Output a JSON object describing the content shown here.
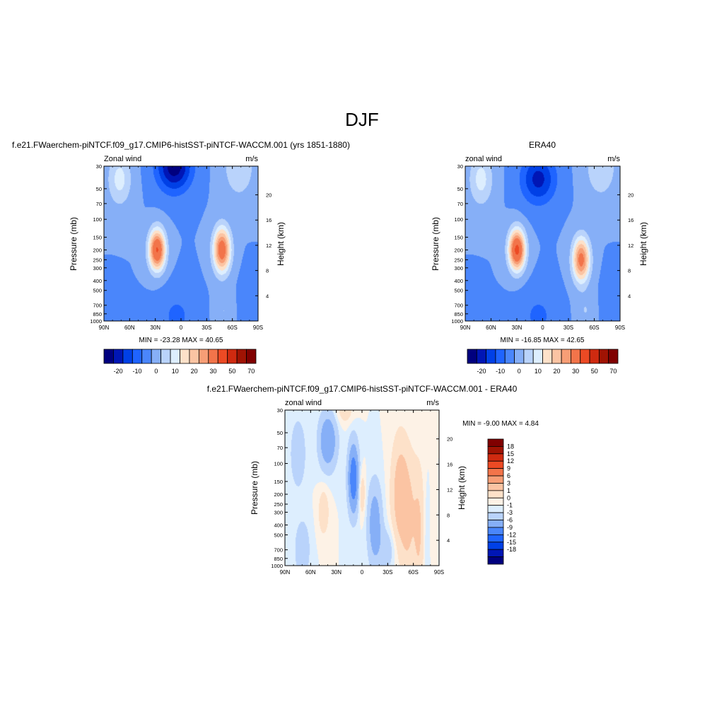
{
  "figure": {
    "title": "DJF"
  },
  "chart_data": [
    {
      "type": "heatmap",
      "title": "f.e21.FWaerchem-piNTCF.f09_g17.CMIP6-histSST-piNTCF-WACCM.001 (yrs 1851-1880)",
      "left_label": "Zonal wind",
      "units_label": "m/s",
      "ylabel": "Pressure (mb)",
      "y2label": "Height (km)",
      "x_ticks": [
        "90N",
        "60N",
        "30N",
        "0",
        "30S",
        "60S",
        "90S"
      ],
      "y_ticks": [
        "30",
        "50",
        "70",
        "100",
        "150",
        "200",
        "250",
        "300",
        "400",
        "500",
        "700",
        "850",
        "1000"
      ],
      "y2_ticks": [
        "4",
        "8",
        "12",
        "16",
        "20"
      ],
      "min_max": "MIN = -23.28  MAX =  40.65",
      "colorbar_levels": [
        -25,
        -20,
        -15,
        -10,
        -5,
        0,
        5,
        10,
        15,
        20,
        25,
        30,
        40,
        50,
        60,
        70
      ],
      "colorbar_labels": [
        "-20",
        "-10",
        "0",
        "10",
        "20",
        "30",
        "50",
        "70"
      ],
      "jets": [
        {
          "lat": 28,
          "p": 200,
          "max": 40.65
        },
        {
          "lat": -48,
          "p": 200,
          "max": 36
        },
        {
          "lat": 8,
          "p": 30,
          "min": -23.28
        }
      ]
    },
    {
      "type": "heatmap",
      "title": "ERA40",
      "left_label": "zonal wind",
      "units_label": "m/s",
      "ylabel": "Pressure (mb)",
      "y2label": "Height (km)",
      "x_ticks": [
        "90N",
        "60N",
        "30N",
        "0",
        "30S",
        "60S",
        "90S"
      ],
      "y_ticks": [
        "30",
        "50",
        "70",
        "100",
        "150",
        "200",
        "250",
        "300",
        "400",
        "500",
        "700",
        "850",
        "1000"
      ],
      "y2_ticks": [
        "4",
        "8",
        "12",
        "16",
        "20"
      ],
      "min_max": "MIN = -16.85  MAX =  42.65",
      "colorbar_levels": [
        -25,
        -20,
        -15,
        -10,
        -5,
        0,
        5,
        10,
        15,
        20,
        25,
        30,
        40,
        50,
        60,
        70
      ],
      "colorbar_labels": [
        "-20",
        "-10",
        "0",
        "10",
        "20",
        "30",
        "50",
        "70"
      ],
      "jets": [
        {
          "lat": 30,
          "p": 200,
          "max": 42.65
        },
        {
          "lat": -45,
          "p": 250,
          "max": 33
        },
        {
          "lat": 5,
          "p": 40,
          "min": -16.85
        }
      ]
    },
    {
      "type": "heatmap",
      "title": "f.e21.FWaerchem-piNTCF.f09_g17.CMIP6-histSST-piNTCF-WACCM.001 - ERA40",
      "left_label": "zonal wind",
      "units_label": "m/s",
      "ylabel": "Pressure (mb)",
      "y2label": "Height (km)",
      "x_ticks": [
        "90N",
        "60N",
        "30N",
        "0",
        "30S",
        "60S",
        "90S"
      ],
      "y_ticks": [
        "30",
        "50",
        "70",
        "100",
        "150",
        "200",
        "250",
        "300",
        "400",
        "500",
        "700",
        "850",
        "1000"
      ],
      "y2_ticks": [
        "4",
        "8",
        "12",
        "16",
        "20"
      ],
      "min_max": "MIN =  -9.00  MAX =   4.84",
      "colorbar_levels": [
        -21,
        -18,
        -15,
        -12,
        -9,
        -6,
        -3,
        -1,
        0,
        1,
        3,
        6,
        9,
        12,
        15,
        18,
        21
      ],
      "colorbar_labels": [
        "18",
        "15",
        "12",
        "9",
        "6",
        "3",
        "1",
        "0",
        "-1",
        "-3",
        "-6",
        "-9",
        "-12",
        "-15",
        "-18"
      ],
      "range": [
        -9.0,
        4.84
      ]
    }
  ]
}
